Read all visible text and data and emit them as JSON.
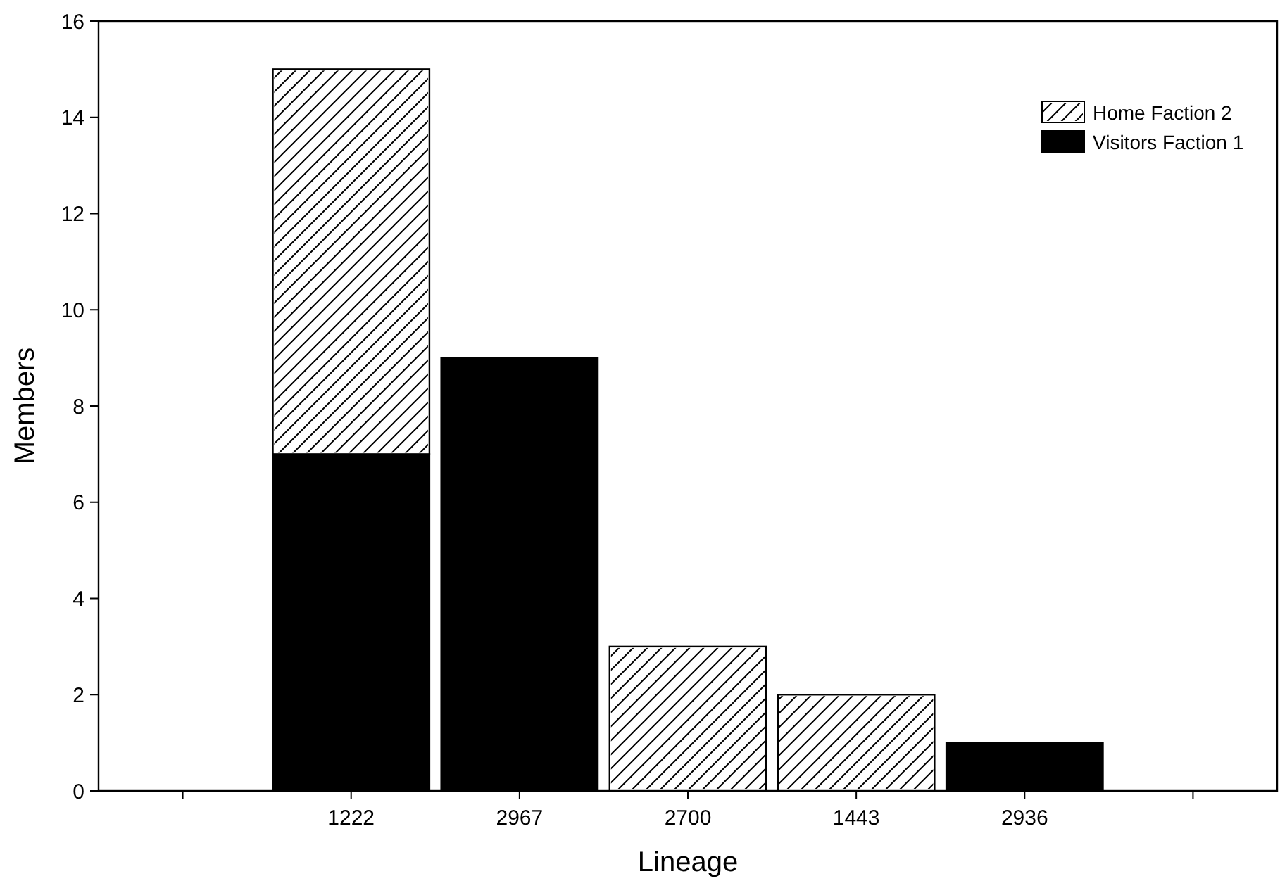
{
  "chart_data": {
    "type": "bar",
    "stacked": true,
    "xlabel": "Lineage",
    "ylabel": "Members",
    "categories": [
      null,
      "1222",
      "2967",
      "2700",
      "1443",
      "2936",
      null
    ],
    "series": [
      {
        "name": "Visitors Faction 1",
        "color": "#000000",
        "values": [
          null,
          7,
          9,
          null,
          null,
          1,
          null
        ]
      },
      {
        "name": "Home Faction 2",
        "color": "#ffffff",
        "values": [
          null,
          8,
          null,
          3,
          2,
          null,
          null
        ]
      }
    ],
    "ylim": [
      0,
      16
    ],
    "yticks": [
      0,
      2,
      4,
      6,
      8,
      10,
      12,
      14,
      16
    ],
    "grid": false,
    "legend": "top right"
  }
}
